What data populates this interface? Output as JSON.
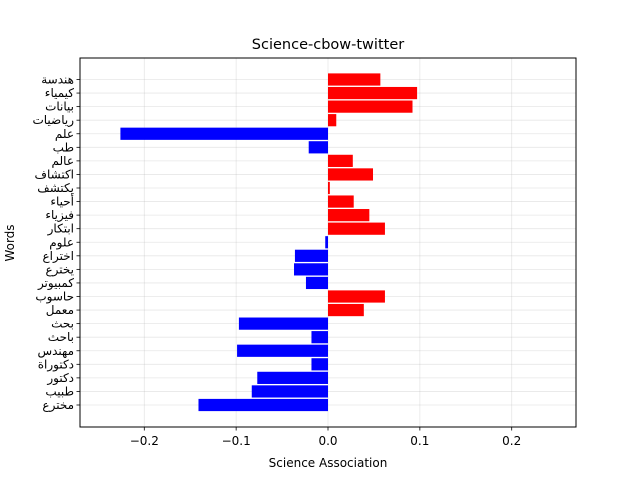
{
  "chart_data": {
    "type": "bar",
    "orientation": "horizontal",
    "title": "Science-cbow-twitter",
    "xlabel": "Science Association",
    "ylabel": "Words",
    "xlim": [
      -0.27,
      0.27
    ],
    "xticks": [
      -0.2,
      -0.1,
      0.0,
      0.1,
      0.2
    ],
    "xtick_labels": [
      "−0.2",
      "−0.1",
      "0.0",
      "0.1",
      "0.2"
    ],
    "grid": true,
    "positive_color": "#ff0000",
    "negative_color": "#0000ff",
    "categories": [
      "هندسة",
      "كيمياء",
      "بيانات",
      "رياضيات",
      "علم",
      "طب",
      "عالم",
      "اكتشاف",
      "يكتشف",
      "أحياء",
      "فيزياء",
      "ابتكار",
      "علوم",
      "اختراع",
      "يخترع",
      "كمبيوتر",
      "حاسوب",
      "معمل",
      "بحث",
      "باحث",
      "مهندس",
      "دكتوراة",
      "دكتور",
      "طبيب",
      "مخترع"
    ],
    "values": [
      0.057,
      0.097,
      0.092,
      0.009,
      -0.226,
      -0.021,
      0.027,
      0.049,
      0.002,
      0.028,
      0.045,
      0.062,
      -0.003,
      -0.036,
      -0.037,
      -0.024,
      0.062,
      0.039,
      -0.097,
      -0.018,
      -0.099,
      -0.018,
      -0.077,
      -0.083,
      -0.141
    ]
  }
}
